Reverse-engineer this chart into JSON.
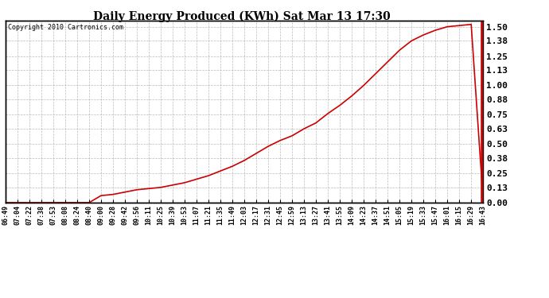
{
  "title": "Daily Energy Produced (KWh) Sat Mar 13 17:30",
  "copyright": "Copyright 2010 Cartronics.com",
  "line_color": "#cc0000",
  "background_color": "#ffffff",
  "grid_color": "#aaaaaa",
  "ylabel_right": [
    "0.00",
    "0.13",
    "0.25",
    "0.38",
    "0.50",
    "0.63",
    "0.75",
    "0.88",
    "1.00",
    "1.13",
    "1.25",
    "1.38",
    "1.50"
  ],
  "ytick_values": [
    0.0,
    0.13,
    0.25,
    0.38,
    0.5,
    0.63,
    0.75,
    0.88,
    1.0,
    1.13,
    1.25,
    1.38,
    1.5
  ],
  "ylim": [
    0.0,
    1.55
  ],
  "x_labels": [
    "06:49",
    "07:04",
    "07:22",
    "07:38",
    "07:53",
    "08:08",
    "08:24",
    "08:40",
    "09:00",
    "09:28",
    "09:42",
    "09:56",
    "10:11",
    "10:25",
    "10:39",
    "10:53",
    "11:07",
    "11:21",
    "11:35",
    "11:49",
    "12:03",
    "12:17",
    "12:31",
    "12:45",
    "12:59",
    "13:13",
    "13:27",
    "13:41",
    "13:55",
    "14:09",
    "14:23",
    "14:37",
    "14:51",
    "15:05",
    "15:19",
    "15:33",
    "15:47",
    "16:01",
    "16:15",
    "16:29",
    "16:43"
  ],
  "y_data": [
    0.0,
    0.0,
    0.0,
    0.0,
    0.0,
    0.0,
    0.0,
    0.0,
    0.06,
    0.07,
    0.09,
    0.11,
    0.12,
    0.13,
    0.15,
    0.17,
    0.2,
    0.23,
    0.27,
    0.31,
    0.36,
    0.42,
    0.48,
    0.53,
    0.57,
    0.63,
    0.68,
    0.76,
    0.83,
    0.91,
    1.0,
    1.1,
    1.2,
    1.3,
    1.38,
    1.43,
    1.47,
    1.5,
    1.51,
    1.52,
    0.02
  ],
  "title_fontsize": 10,
  "tick_fontsize": 6,
  "copyright_fontsize": 6
}
